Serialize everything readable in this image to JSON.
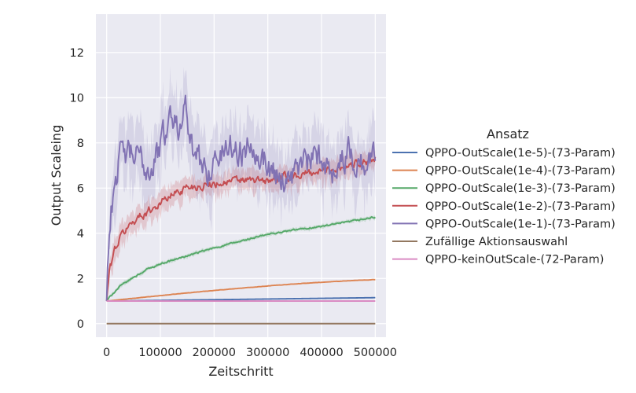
{
  "chart_data": {
    "type": "line",
    "title": "",
    "xlabel": "Zeitschritt",
    "ylabel": "Output Scaleing",
    "xlim": [
      -20000,
      520000
    ],
    "ylim": [
      -0.6,
      13.7
    ],
    "xticks": [
      0,
      100000,
      200000,
      300000,
      400000,
      500000
    ],
    "xtick_labels": [
      "0",
      "100000",
      "200000",
      "300000",
      "400000",
      "500000"
    ],
    "yticks": [
      0,
      2,
      4,
      6,
      8,
      10,
      12
    ],
    "ytick_labels": [
      "0",
      "2",
      "4",
      "6",
      "8",
      "10",
      "12"
    ],
    "grid": true,
    "background": "#eaeaf2",
    "legend": {
      "title": "Ansatz",
      "placement": "right"
    },
    "series": [
      {
        "name": "QPPO-OutScale(1e-5)-(73-Param)",
        "color": "#4c72b0",
        "x": [
          0,
          100000,
          200000,
          300000,
          400000,
          500000
        ],
        "values": [
          1.0,
          1.03,
          1.06,
          1.09,
          1.12,
          1.15
        ],
        "band": 0.01,
        "noise": 0
      },
      {
        "name": "QPPO-OutScale(1e-4)-(73-Param)",
        "color": "#dd8452",
        "x": [
          0,
          50000,
          100000,
          150000,
          200000,
          250000,
          300000,
          350000,
          400000,
          450000,
          500000
        ],
        "values": [
          1.0,
          1.12,
          1.24,
          1.36,
          1.47,
          1.57,
          1.67,
          1.76,
          1.83,
          1.9,
          1.95
        ],
        "band": 0.02,
        "noise": 0.005
      },
      {
        "name": "QPPO-OutScale(1e-3)-(73-Param)",
        "color": "#55a868",
        "x": [
          0,
          10000,
          25000,
          50000,
          75000,
          100000,
          150000,
          200000,
          250000,
          300000,
          350000,
          400000,
          450000,
          500000
        ],
        "values": [
          1.0,
          1.3,
          1.65,
          2.05,
          2.4,
          2.65,
          3.0,
          3.35,
          3.65,
          3.95,
          4.15,
          4.3,
          4.5,
          4.72
        ],
        "band": 0.08,
        "noise": 0.03
      },
      {
        "name": "QPPO-OutScale(1e-2)-(73-Param)",
        "color": "#c44e52",
        "x": [
          0,
          5000,
          15000,
          30000,
          50000,
          75000,
          100000,
          125000,
          150000,
          175000,
          200000,
          250000,
          300000,
          350000,
          400000,
          450000,
          480000,
          500000
        ],
        "values": [
          1.0,
          2.3,
          3.3,
          4.0,
          4.55,
          4.95,
          5.35,
          5.75,
          6.05,
          6.1,
          6.2,
          6.35,
          6.3,
          6.55,
          6.75,
          7.0,
          7.2,
          7.3
        ],
        "band": 0.45,
        "noise": 0.15
      },
      {
        "name": "QPPO-OutScale(1e-1)-(73-Param)",
        "color": "#8172b3",
        "x": [
          0,
          3000,
          8000,
          15000,
          25000,
          40000,
          60000,
          80000,
          100000,
          120000,
          135000,
          145000,
          155000,
          170000,
          190000,
          210000,
          230000,
          250000,
          270000,
          300000,
          330000,
          360000,
          390000,
          420000,
          450000,
          480000,
          500000
        ],
        "values": [
          1.0,
          3.5,
          4.8,
          6.5,
          7.3,
          7.5,
          7.3,
          6.8,
          7.8,
          9.3,
          8.6,
          10.5,
          7.8,
          7.2,
          6.8,
          7.4,
          8.0,
          7.5,
          8.2,
          7.0,
          6.4,
          7.0,
          7.3,
          6.9,
          7.5,
          7.0,
          7.4
        ],
        "band": 1.3,
        "noise": 0.55
      },
      {
        "name": "Zufällige Aktionsauswahl",
        "color": "#937860",
        "x": [
          0,
          500000
        ],
        "values": [
          0,
          0
        ],
        "band": 0,
        "noise": 0
      },
      {
        "name": "QPPO-keinOutScale-(72-Param)",
        "color": "#da8bc3",
        "x": [
          0,
          500000
        ],
        "values": [
          1.0,
          1.0
        ],
        "band": 0,
        "noise": 0
      }
    ]
  }
}
